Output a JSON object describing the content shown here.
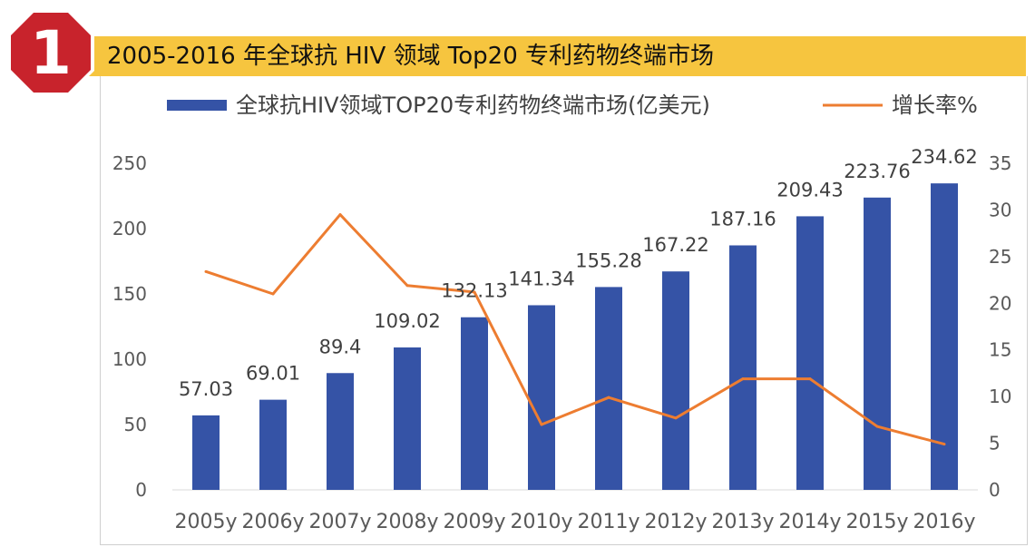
{
  "header": {
    "badge_number": "1",
    "title": "2005-2016 年全球抗 HIV 领域 Top20 专利药物终端市场"
  },
  "colors": {
    "bar": "#3553a6",
    "line": "#ed7d31",
    "header_bg": "#f6c53f",
    "badge": "#c8232c"
  },
  "chart_data": {
    "type": "bar",
    "title": "2005-2016 年全球抗 HIV 领域 Top20 专利药物终端市场",
    "categories": [
      "2005y",
      "2006y",
      "2007y",
      "2008y",
      "2009y",
      "2010y",
      "2011y",
      "2012y",
      "2013y",
      "2014y",
      "2015y",
      "2016y"
    ],
    "series": [
      {
        "name": "全球抗HIV领域TOP20专利药物终端市场(亿美元)",
        "type": "bar",
        "axis": "left",
        "values": [
          57.03,
          69.01,
          89.4,
          109.02,
          132.13,
          141.34,
          155.28,
          167.22,
          187.16,
          209.43,
          223.76,
          234.62
        ],
        "labels": [
          "57.03",
          "69.01",
          "89.4",
          "109.02",
          "132.13",
          "141.34",
          "155.28",
          "167.22",
          "187.16",
          "209.43",
          "223.76",
          "234.62"
        ]
      },
      {
        "name": "增长率%",
        "type": "line",
        "axis": "right",
        "values": [
          23.4,
          21.0,
          29.5,
          21.9,
          21.2,
          7.0,
          9.9,
          7.7,
          11.9,
          11.9,
          6.8,
          4.9
        ]
      }
    ],
    "y_left": {
      "min": 0,
      "max": 250,
      "ticks": [
        "0",
        "50",
        "100",
        "150",
        "200",
        "250"
      ]
    },
    "y_right": {
      "min": 0,
      "max": 35,
      "ticks": [
        "0",
        "5",
        "10",
        "15",
        "20",
        "25",
        "30",
        "35"
      ]
    },
    "legend_position": "top",
    "grid": false
  }
}
